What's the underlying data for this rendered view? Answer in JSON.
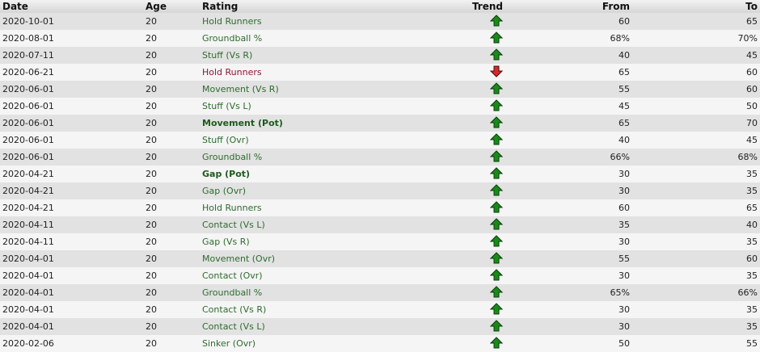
{
  "headers": {
    "date": "Date",
    "age": "Age",
    "rating": "Rating",
    "trend": "Trend",
    "from": "From",
    "to": "To"
  },
  "colors": {
    "up": "#1a8a1a",
    "down": "#d62a2a",
    "rating_up": "#2e6b2e",
    "rating_down": "#8b1538"
  },
  "rows": [
    {
      "date": "2020-10-01",
      "age": "20",
      "rating": "Hold Runners",
      "trend": "up",
      "from": "60",
      "to": "65",
      "bold": false
    },
    {
      "date": "2020-08-01",
      "age": "20",
      "rating": "Groundball %",
      "trend": "up",
      "from": "68%",
      "to": "70%",
      "bold": false
    },
    {
      "date": "2020-07-11",
      "age": "20",
      "rating": "Stuff (Vs R)",
      "trend": "up",
      "from": "40",
      "to": "45",
      "bold": false
    },
    {
      "date": "2020-06-21",
      "age": "20",
      "rating": "Hold Runners",
      "trend": "down",
      "from": "65",
      "to": "60",
      "bold": false
    },
    {
      "date": "2020-06-01",
      "age": "20",
      "rating": "Movement (Vs R)",
      "trend": "up",
      "from": "55",
      "to": "60",
      "bold": false
    },
    {
      "date": "2020-06-01",
      "age": "20",
      "rating": "Stuff (Vs L)",
      "trend": "up",
      "from": "45",
      "to": "50",
      "bold": false
    },
    {
      "date": "2020-06-01",
      "age": "20",
      "rating": "Movement (Pot)",
      "trend": "up",
      "from": "65",
      "to": "70",
      "bold": true
    },
    {
      "date": "2020-06-01",
      "age": "20",
      "rating": "Stuff (Ovr)",
      "trend": "up",
      "from": "40",
      "to": "45",
      "bold": false
    },
    {
      "date": "2020-06-01",
      "age": "20",
      "rating": "Groundball %",
      "trend": "up",
      "from": "66%",
      "to": "68%",
      "bold": false
    },
    {
      "date": "2020-04-21",
      "age": "20",
      "rating": "Gap (Pot)",
      "trend": "up",
      "from": "30",
      "to": "35",
      "bold": true
    },
    {
      "date": "2020-04-21",
      "age": "20",
      "rating": "Gap (Ovr)",
      "trend": "up",
      "from": "30",
      "to": "35",
      "bold": false
    },
    {
      "date": "2020-04-21",
      "age": "20",
      "rating": "Hold Runners",
      "trend": "up",
      "from": "60",
      "to": "65",
      "bold": false
    },
    {
      "date": "2020-04-11",
      "age": "20",
      "rating": "Contact (Vs L)",
      "trend": "up",
      "from": "35",
      "to": "40",
      "bold": false
    },
    {
      "date": "2020-04-11",
      "age": "20",
      "rating": "Gap (Vs R)",
      "trend": "up",
      "from": "30",
      "to": "35",
      "bold": false
    },
    {
      "date": "2020-04-01",
      "age": "20",
      "rating": "Movement (Ovr)",
      "trend": "up",
      "from": "55",
      "to": "60",
      "bold": false
    },
    {
      "date": "2020-04-01",
      "age": "20",
      "rating": "Contact (Ovr)",
      "trend": "up",
      "from": "30",
      "to": "35",
      "bold": false
    },
    {
      "date": "2020-04-01",
      "age": "20",
      "rating": "Groundball %",
      "trend": "up",
      "from": "65%",
      "to": "66%",
      "bold": false
    },
    {
      "date": "2020-04-01",
      "age": "20",
      "rating": "Contact (Vs R)",
      "trend": "up",
      "from": "30",
      "to": "35",
      "bold": false
    },
    {
      "date": "2020-04-01",
      "age": "20",
      "rating": "Contact (Vs L)",
      "trend": "up",
      "from": "30",
      "to": "35",
      "bold": false
    },
    {
      "date": "2020-02-06",
      "age": "20",
      "rating": "Sinker (Ovr)",
      "trend": "up",
      "from": "50",
      "to": "55",
      "bold": false
    }
  ]
}
